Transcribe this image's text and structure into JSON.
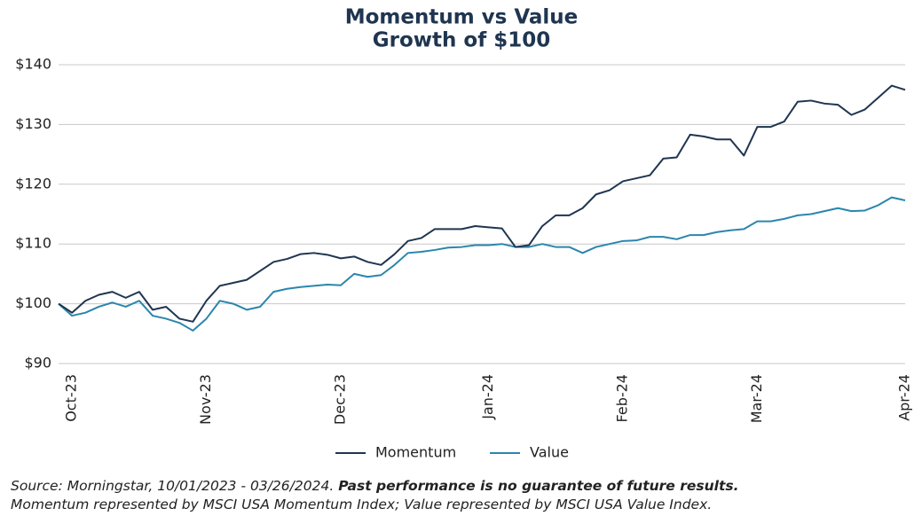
{
  "chart_data": {
    "type": "line",
    "title": "Momentum vs Value",
    "subtitle": "Growth of $100",
    "categories": [
      null,
      "Oct-23",
      null,
      null,
      null,
      null,
      null,
      null,
      null,
      null,
      null,
      "Nov-23",
      null,
      null,
      null,
      null,
      null,
      null,
      null,
      null,
      null,
      "Dec-23",
      null,
      null,
      null,
      null,
      null,
      null,
      null,
      null,
      null,
      null,
      "Jan-24",
      null,
      null,
      null,
      null,
      null,
      null,
      null,
      null,
      null,
      "Feb-24",
      null,
      null,
      null,
      null,
      null,
      null,
      null,
      null,
      null,
      "Mar-24",
      null,
      null,
      null,
      null,
      null,
      null,
      null,
      null,
      null,
      null,
      "Apr-24"
    ],
    "series": [
      {
        "name": "Momentum",
        "color": "#1f3550",
        "values": [
          100,
          98.5,
          100.5,
          101.5,
          102,
          101,
          102,
          99,
          99.5,
          97.5,
          97,
          100.5,
          103,
          103.5,
          104,
          105.5,
          107,
          107.5,
          108.3,
          108.5,
          108.2,
          107.6,
          107.9,
          107,
          106.5,
          108.3,
          110.5,
          111,
          112.5,
          112.5,
          112.5,
          113,
          112.8,
          112.6,
          109.5,
          109.8,
          113,
          114.8,
          114.8,
          116,
          118.3,
          119,
          120.5,
          121,
          121.5,
          124.3,
          124.5,
          128.3,
          128,
          127.5,
          127.5,
          124.8,
          129.6,
          129.6,
          130.5,
          133.8,
          134,
          133.5,
          133.3,
          131.6,
          132.5,
          134.5,
          136.5,
          135.8
        ]
      },
      {
        "name": "Value",
        "color": "#2a86ad",
        "values": [
          100,
          98,
          98.5,
          99.5,
          100.2,
          99.5,
          100.5,
          98,
          97.5,
          96.8,
          95.5,
          97.5,
          100.5,
          100,
          99,
          99.5,
          102,
          102.5,
          102.8,
          103,
          103.2,
          103.1,
          105,
          104.5,
          104.8,
          106.5,
          108.5,
          108.7,
          109,
          109.4,
          109.5,
          109.8,
          109.8,
          110,
          109.5,
          109.5,
          110,
          109.5,
          109.5,
          108.5,
          109.5,
          110,
          110.5,
          110.6,
          111.2,
          111.2,
          110.8,
          111.5,
          111.5,
          112,
          112.3,
          112.5,
          113.8,
          113.8,
          114.2,
          114.8,
          115,
          115.5,
          116,
          115.5,
          115.6,
          116.5,
          117.8,
          117.3
        ]
      }
    ],
    "ylim": [
      90,
      140
    ],
    "yticks": [
      {
        "value": 90,
        "label": "$90"
      },
      {
        "value": 100,
        "label": "$100"
      },
      {
        "value": 110,
        "label": "$110"
      },
      {
        "value": 120,
        "label": "$120"
      },
      {
        "value": 130,
        "label": "$130"
      },
      {
        "value": 140,
        "label": "$140"
      }
    ],
    "grid": true,
    "legend": "bottom",
    "source": "Source: Morningstar, 10/01/2023 - 03/26/2024.",
    "source_emphasis": "Past performance is no guarantee of future results.",
    "note": "Momentum represented by MSCI USA Momentum Index; Value represented by MSCI USA Value Index."
  }
}
